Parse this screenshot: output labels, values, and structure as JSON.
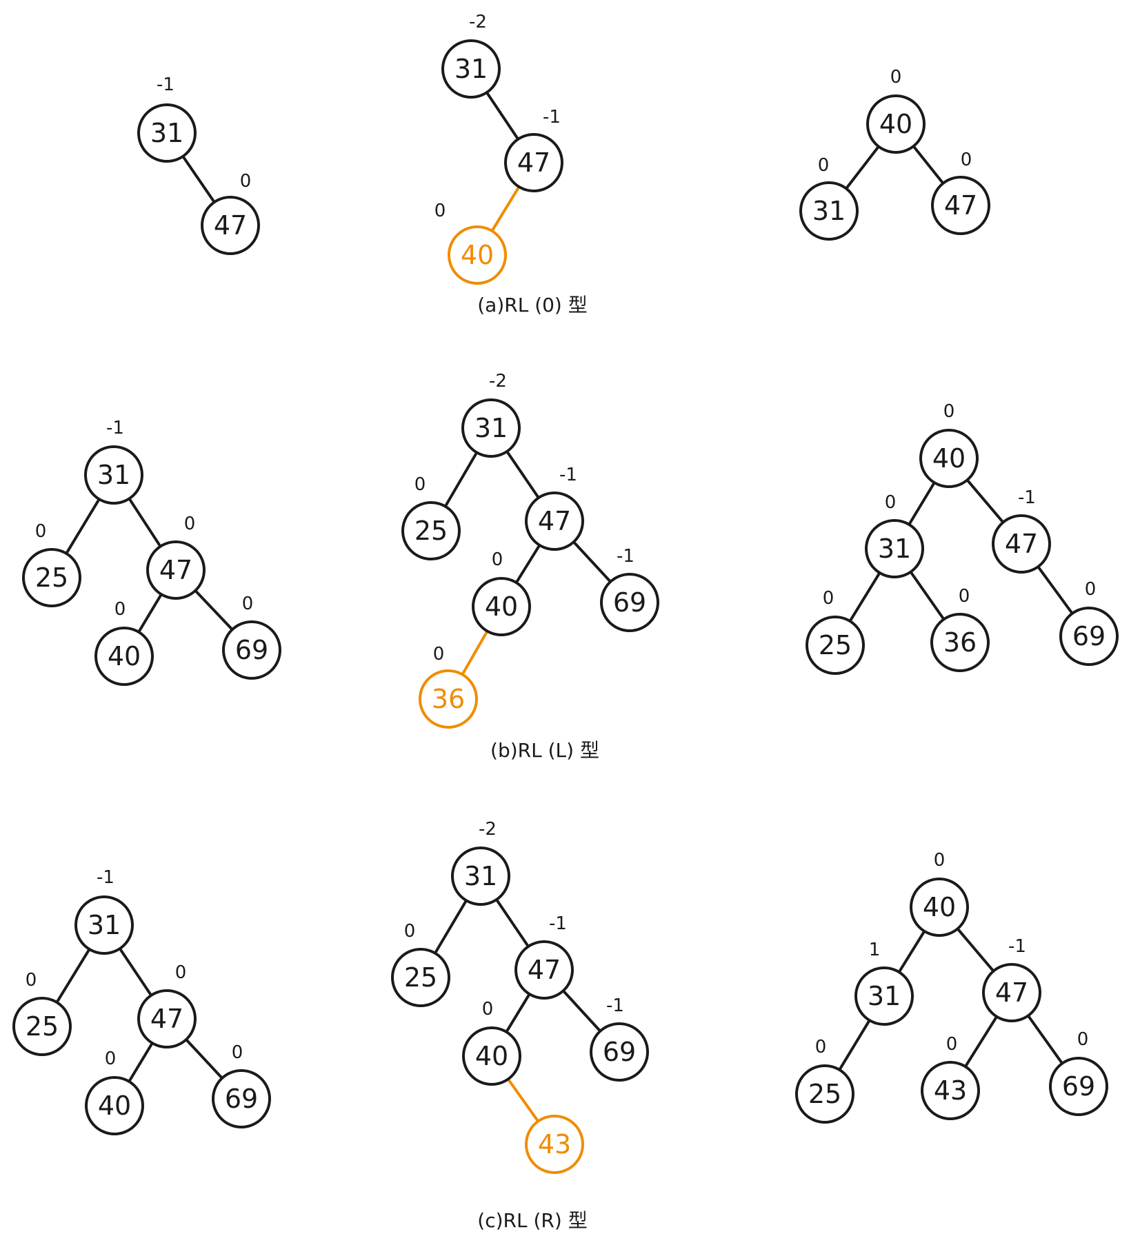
{
  "colors": {
    "ink": "#1a1a1a",
    "highlight": "#f08c00"
  },
  "panels": [
    {
      "caption": "(a)RL (0) 型",
      "trees": [
        {
          "nodes": [
            {
              "id": "n31",
              "label": "31",
              "bf": "-1"
            },
            {
              "id": "n47",
              "label": "47",
              "bf": "0"
            }
          ],
          "edges": [
            [
              "n31",
              "n47"
            ]
          ]
        },
        {
          "nodes": [
            {
              "id": "n31",
              "label": "31",
              "bf": "-2"
            },
            {
              "id": "n47",
              "label": "47",
              "bf": "-1"
            },
            {
              "id": "n40",
              "label": "40",
              "bf": "0",
              "highlight": true
            }
          ],
          "edges": [
            [
              "n31",
              "n47"
            ],
            [
              "n47",
              "n40",
              "highlight"
            ]
          ]
        },
        {
          "nodes": [
            {
              "id": "n40",
              "label": "40",
              "bf": "0"
            },
            {
              "id": "n31",
              "label": "31",
              "bf": "0"
            },
            {
              "id": "n47",
              "label": "47",
              "bf": "0"
            }
          ],
          "edges": [
            [
              "n40",
              "n31"
            ],
            [
              "n40",
              "n47"
            ]
          ]
        }
      ]
    },
    {
      "caption": "(b)RL (L) 型",
      "trees": [
        {
          "nodes": [
            {
              "id": "n31",
              "label": "31",
              "bf": "-1"
            },
            {
              "id": "n25",
              "label": "25",
              "bf": "0"
            },
            {
              "id": "n47",
              "label": "47",
              "bf": "0"
            },
            {
              "id": "n40",
              "label": "40",
              "bf": "0"
            },
            {
              "id": "n69",
              "label": "69",
              "bf": "0"
            }
          ],
          "edges": [
            [
              "n31",
              "n25"
            ],
            [
              "n31",
              "n47"
            ],
            [
              "n47",
              "n40"
            ],
            [
              "n47",
              "n69"
            ]
          ]
        },
        {
          "nodes": [
            {
              "id": "n31",
              "label": "31",
              "bf": "-2"
            },
            {
              "id": "n25",
              "label": "25",
              "bf": "0"
            },
            {
              "id": "n47",
              "label": "47",
              "bf": "-1"
            },
            {
              "id": "n40",
              "label": "40",
              "bf": "0"
            },
            {
              "id": "n69",
              "label": "69",
              "bf": "-1"
            },
            {
              "id": "n36",
              "label": "36",
              "bf": "0",
              "highlight": true
            }
          ],
          "edges": [
            [
              "n31",
              "n25"
            ],
            [
              "n31",
              "n47"
            ],
            [
              "n47",
              "n40"
            ],
            [
              "n47",
              "n69"
            ],
            [
              "n40",
              "n36",
              "highlight"
            ]
          ]
        },
        {
          "nodes": [
            {
              "id": "n40",
              "label": "40",
              "bf": "0"
            },
            {
              "id": "n31",
              "label": "31",
              "bf": "0"
            },
            {
              "id": "n47",
              "label": "47",
              "bf": "-1"
            },
            {
              "id": "n25",
              "label": "25",
              "bf": "0"
            },
            {
              "id": "n36",
              "label": "36",
              "bf": "0"
            },
            {
              "id": "n69",
              "label": "69",
              "bf": "0"
            }
          ],
          "edges": [
            [
              "n40",
              "n31"
            ],
            [
              "n40",
              "n47"
            ],
            [
              "n31",
              "n25"
            ],
            [
              "n31",
              "n36"
            ],
            [
              "n47",
              "n69"
            ]
          ]
        }
      ]
    },
    {
      "caption": "(c)RL (R) 型",
      "trees": [
        {
          "nodes": [
            {
              "id": "n31",
              "label": "31",
              "bf": "-1"
            },
            {
              "id": "n25",
              "label": "25",
              "bf": "0"
            },
            {
              "id": "n47",
              "label": "47",
              "bf": "0"
            },
            {
              "id": "n40",
              "label": "40",
              "bf": "0"
            },
            {
              "id": "n69",
              "label": "69",
              "bf": "0"
            }
          ],
          "edges": [
            [
              "n31",
              "n25"
            ],
            [
              "n31",
              "n47"
            ],
            [
              "n47",
              "n40"
            ],
            [
              "n47",
              "n69"
            ]
          ]
        },
        {
          "nodes": [
            {
              "id": "n31",
              "label": "31",
              "bf": "-2"
            },
            {
              "id": "n25",
              "label": "25",
              "bf": "0"
            },
            {
              "id": "n47",
              "label": "47",
              "bf": "-1"
            },
            {
              "id": "n40",
              "label": "40",
              "bf": "0"
            },
            {
              "id": "n69",
              "label": "69",
              "bf": "-1"
            },
            {
              "id": "n43",
              "label": "43",
              "bf": "",
              "highlight": true
            }
          ],
          "edges": [
            [
              "n31",
              "n25"
            ],
            [
              "n31",
              "n47"
            ],
            [
              "n47",
              "n40"
            ],
            [
              "n47",
              "n69"
            ],
            [
              "n40",
              "n43",
              "highlight"
            ]
          ]
        },
        {
          "nodes": [
            {
              "id": "n40",
              "label": "40",
              "bf": "0"
            },
            {
              "id": "n31",
              "label": "31",
              "bf": "1"
            },
            {
              "id": "n47",
              "label": "47",
              "bf": "-1"
            },
            {
              "id": "n25",
              "label": "25",
              "bf": "0"
            },
            {
              "id": "n43",
              "label": "43",
              "bf": "0"
            },
            {
              "id": "n69",
              "label": "69",
              "bf": "0"
            }
          ],
          "edges": [
            [
              "n40",
              "n31"
            ],
            [
              "n40",
              "n47"
            ],
            [
              "n31",
              "n25"
            ],
            [
              "n47",
              "n43"
            ],
            [
              "n47",
              "n69"
            ]
          ]
        }
      ]
    }
  ]
}
